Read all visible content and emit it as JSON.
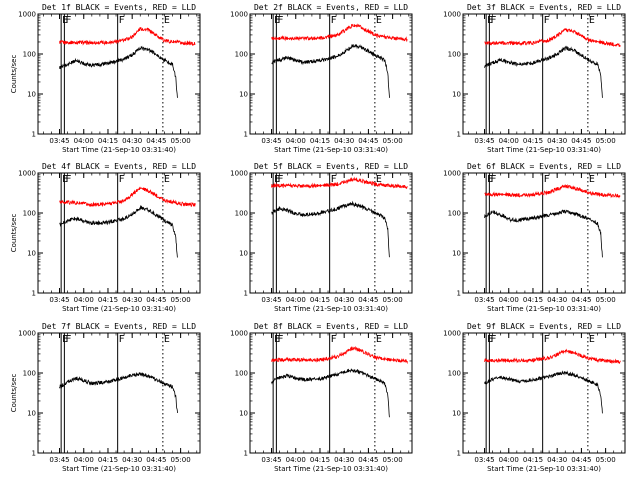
{
  "figure": {
    "background": "#ffffff"
  },
  "chart_data": [
    {
      "type": "line",
      "title": "Det 1f BLACK = Events, RED = LLD",
      "xlabel": "Start Time (21-Sep-10 03:31:40)",
      "ylabel": "Counts/sec",
      "yscale": "log",
      "ylim": [
        1,
        1000
      ],
      "xlim": [
        "03:31:40",
        "05:12:00"
      ],
      "x_ticks": [
        "03:45",
        "04:00",
        "04:15",
        "04:30",
        "04:45",
        "05:00"
      ],
      "y_ticks": [
        "1",
        "10",
        "100",
        "1000"
      ],
      "series": [
        {
          "color": "#ff0000",
          "x": [
            "03:45",
            "03:55",
            "04:05",
            "04:15",
            "04:25",
            "04:30",
            "04:35",
            "04:40",
            "04:50",
            "05:00",
            "05:05",
            "05:09"
          ],
          "values": [
            195,
            195,
            190,
            195,
            220,
            270,
            430,
            400,
            215,
            190,
            185,
            180
          ]
        },
        {
          "color": "#000000",
          "x": [
            "03:45",
            "03:50",
            "03:55",
            "04:00",
            "04:05",
            "04:15",
            "04:25",
            "04:30",
            "04:35",
            "04:40",
            "04:50",
            "04:55",
            "04:57",
            "04:58"
          ],
          "values": [
            45,
            55,
            68,
            58,
            52,
            58,
            75,
            95,
            140,
            130,
            70,
            55,
            25,
            8
          ]
        }
      ],
      "vlines": [
        {
          "x": "03:46",
          "style": "solid",
          "label": "E"
        },
        {
          "x": "03:48",
          "style": "solid",
          "label": "F"
        },
        {
          "x": "04:21",
          "style": "solid",
          "label": "F"
        },
        {
          "x": "04:49",
          "style": "dotted",
          "label": "E"
        }
      ],
      "grid": false,
      "legend": "none"
    },
    {
      "type": "line",
      "title": "Det 2f BLACK = Events, RED = LLD",
      "xlabel": "Start Time (21-Sep-10 03:31:40)",
      "ylabel": "",
      "yscale": "log",
      "ylim": [
        1,
        1000
      ],
      "xlim": [
        "03:31:40",
        "05:12:00"
      ],
      "x_ticks": [
        "03:45",
        "04:00",
        "04:15",
        "04:30",
        "04:45",
        "05:00"
      ],
      "y_ticks": [
        "1",
        "10",
        "100",
        "1000"
      ],
      "series": [
        {
          "color": "#ff0000",
          "x": [
            "03:45",
            "03:55",
            "04:05",
            "04:15",
            "04:25",
            "04:30",
            "04:35",
            "04:40",
            "04:50",
            "05:00",
            "05:05",
            "05:09"
          ],
          "values": [
            245,
            250,
            245,
            250,
            290,
            380,
            520,
            470,
            290,
            250,
            240,
            230
          ]
        },
        {
          "color": "#000000",
          "x": [
            "03:45",
            "03:50",
            "03:55",
            "04:00",
            "04:05",
            "04:15",
            "04:25",
            "04:30",
            "04:35",
            "04:40",
            "04:50",
            "04:55",
            "04:57",
            "04:58"
          ],
          "values": [
            62,
            72,
            80,
            70,
            62,
            68,
            85,
            110,
            160,
            150,
            90,
            70,
            35,
            8
          ]
        }
      ],
      "vlines": [
        {
          "x": "03:46",
          "style": "solid",
          "label": "E"
        },
        {
          "x": "03:48",
          "style": "solid",
          "label": "F"
        },
        {
          "x": "04:21",
          "style": "solid",
          "label": "F"
        },
        {
          "x": "04:49",
          "style": "dotted",
          "label": "E"
        }
      ],
      "grid": false,
      "legend": "none"
    },
    {
      "type": "line",
      "title": "Det 3f BLACK = Events, RED = LLD",
      "xlabel": "Start Time (21-Sep-10 03:31:40)",
      "ylabel": "",
      "yscale": "log",
      "ylim": [
        1,
        1000
      ],
      "xlim": [
        "03:31:40",
        "05:12:00"
      ],
      "x_ticks": [
        "03:45",
        "04:00",
        "04:15",
        "04:30",
        "04:45",
        "05:00"
      ],
      "y_ticks": [
        "1",
        "10",
        "100",
        "1000"
      ],
      "series": [
        {
          "color": "#ff0000",
          "x": [
            "03:45",
            "03:55",
            "04:05",
            "04:15",
            "04:25",
            "04:30",
            "04:35",
            "04:40",
            "04:50",
            "05:00",
            "05:05",
            "05:09"
          ],
          "values": [
            185,
            190,
            185,
            190,
            220,
            290,
            410,
            370,
            220,
            185,
            175,
            165
          ]
        },
        {
          "color": "#000000",
          "x": [
            "03:45",
            "03:50",
            "03:55",
            "04:00",
            "04:05",
            "04:15",
            "04:25",
            "04:30",
            "04:35",
            "04:40",
            "04:50",
            "04:55",
            "04:57",
            "04:58"
          ],
          "values": [
            50,
            60,
            70,
            62,
            55,
            60,
            78,
            100,
            140,
            125,
            70,
            55,
            30,
            8
          ]
        }
      ],
      "vlines": [
        {
          "x": "03:46",
          "style": "solid",
          "label": "E"
        },
        {
          "x": "03:48",
          "style": "solid",
          "label": "F"
        },
        {
          "x": "04:21",
          "style": "solid",
          "label": "F"
        },
        {
          "x": "04:49",
          "style": "dotted",
          "label": "E"
        }
      ],
      "grid": false,
      "legend": "none"
    },
    {
      "type": "line",
      "title": "Det 4f BLACK = Events, RED = LLD",
      "xlabel": "Start Time (21-Sep-10 03:31:40)",
      "ylabel": "Counts/sec",
      "yscale": "log",
      "ylim": [
        1,
        1000
      ],
      "xlim": [
        "03:31:40",
        "05:12:00"
      ],
      "x_ticks": [
        "03:45",
        "04:00",
        "04:15",
        "04:30",
        "04:45",
        "05:00"
      ],
      "y_ticks": [
        "1",
        "10",
        "100",
        "1000"
      ],
      "series": [
        {
          "color": "#ff0000",
          "x": [
            "03:45",
            "03:55",
            "04:05",
            "04:15",
            "04:25",
            "04:30",
            "04:35",
            "04:40",
            "04:50",
            "05:00",
            "05:05",
            "05:09"
          ],
          "values": [
            190,
            180,
            160,
            170,
            200,
            290,
            420,
            360,
            210,
            170,
            165,
            160
          ]
        },
        {
          "color": "#000000",
          "x": [
            "03:45",
            "03:50",
            "03:55",
            "04:00",
            "04:05",
            "04:15",
            "04:25",
            "04:30",
            "04:35",
            "04:40",
            "04:50",
            "04:55",
            "04:57",
            "04:58"
          ],
          "values": [
            50,
            65,
            75,
            62,
            55,
            58,
            72,
            95,
            135,
            120,
            65,
            50,
            25,
            8
          ]
        }
      ],
      "vlines": [
        {
          "x": "03:46",
          "style": "solid",
          "label": "E"
        },
        {
          "x": "03:48",
          "style": "solid",
          "label": "F"
        },
        {
          "x": "04:21",
          "style": "solid",
          "label": "F"
        },
        {
          "x": "04:49",
          "style": "dotted",
          "label": "E"
        }
      ],
      "grid": false,
      "legend": "none"
    },
    {
      "type": "line",
      "title": "Det 5f BLACK = Events, RED = LLD",
      "xlabel": "Start Time (21-Sep-10 03:31:40)",
      "ylabel": "",
      "yscale": "log",
      "ylim": [
        1,
        1000
      ],
      "xlim": [
        "03:31:40",
        "05:12:00"
      ],
      "x_ticks": [
        "03:45",
        "04:00",
        "04:15",
        "04:30",
        "04:45",
        "05:00"
      ],
      "y_ticks": [
        "1",
        "10",
        "100",
        "1000"
      ],
      "series": [
        {
          "color": "#ff0000",
          "x": [
            "03:45",
            "03:55",
            "04:05",
            "04:15",
            "04:25",
            "04:30",
            "04:35",
            "04:40",
            "04:50",
            "05:00",
            "05:05",
            "05:09"
          ],
          "values": [
            480,
            490,
            470,
            480,
            520,
            600,
            700,
            650,
            520,
            470,
            460,
            450
          ]
        },
        {
          "color": "#000000",
          "x": [
            "03:45",
            "03:50",
            "03:55",
            "04:00",
            "04:05",
            "04:15",
            "04:25",
            "04:30",
            "04:35",
            "04:40",
            "04:50",
            "04:55",
            "04:57",
            "04:58"
          ],
          "values": [
            100,
            130,
            115,
            95,
            90,
            100,
            125,
            150,
            170,
            150,
            100,
            75,
            40,
            8
          ]
        }
      ],
      "vlines": [
        {
          "x": "03:46",
          "style": "solid",
          "label": "E"
        },
        {
          "x": "03:48",
          "style": "solid",
          "label": "F"
        },
        {
          "x": "04:21",
          "style": "solid",
          "label": "F"
        },
        {
          "x": "04:49",
          "style": "dotted",
          "label": "E"
        }
      ],
      "grid": false,
      "legend": "none"
    },
    {
      "type": "line",
      "title": "Det 6f BLACK = Events, RED = LLD",
      "xlabel": "Start Time (21-Sep-10 03:31:40)",
      "ylabel": "",
      "yscale": "log",
      "ylim": [
        1,
        1000
      ],
      "xlim": [
        "03:31:40",
        "05:12:00"
      ],
      "x_ticks": [
        "03:45",
        "04:00",
        "04:15",
        "04:30",
        "04:45",
        "05:00"
      ],
      "y_ticks": [
        "1",
        "10",
        "100",
        "1000"
      ],
      "series": [
        {
          "color": "#ff0000",
          "x": [
            "03:45",
            "03:55",
            "04:05",
            "04:15",
            "04:25",
            "04:30",
            "04:35",
            "04:40",
            "04:50",
            "05:00",
            "05:05",
            "05:09"
          ],
          "values": [
            290,
            290,
            280,
            290,
            330,
            400,
            470,
            420,
            320,
            280,
            275,
            270
          ]
        },
        {
          "color": "#000000",
          "x": [
            "03:45",
            "03:50",
            "03:55",
            "04:00",
            "04:05",
            "04:15",
            "04:25",
            "04:30",
            "04:35",
            "04:40",
            "04:50",
            "04:55",
            "04:57",
            "04:58"
          ],
          "values": [
            80,
            110,
            90,
            70,
            65,
            75,
            90,
            100,
            110,
            100,
            70,
            55,
            30,
            8
          ]
        }
      ],
      "vlines": [
        {
          "x": "03:46",
          "style": "solid",
          "label": "E"
        },
        {
          "x": "03:48",
          "style": "solid",
          "label": "F"
        },
        {
          "x": "04:21",
          "style": "solid",
          "label": "F"
        },
        {
          "x": "04:49",
          "style": "dotted",
          "label": "E"
        }
      ],
      "grid": false,
      "legend": "none"
    },
    {
      "type": "line",
      "title": "Det 7f BLACK = Events, RED = LLD",
      "xlabel": "Start Time (21-Sep-10 03:31:40)",
      "ylabel": "Counts/sec",
      "yscale": "log",
      "ylim": [
        1,
        1000
      ],
      "xlim": [
        "03:31:40",
        "05:12:00"
      ],
      "x_ticks": [
        "03:45",
        "04:00",
        "04:15",
        "04:30",
        "04:45",
        "05:00"
      ],
      "y_ticks": [
        "1",
        "10",
        "100",
        "1000"
      ],
      "series": [
        {
          "color": "#000000",
          "x": [
            "03:45",
            "03:50",
            "03:55",
            "04:00",
            "04:05",
            "04:15",
            "04:25",
            "04:30",
            "04:35",
            "04:40",
            "04:50",
            "04:55",
            "04:57",
            "04:58"
          ],
          "values": [
            45,
            60,
            75,
            65,
            55,
            60,
            75,
            90,
            95,
            85,
            55,
            45,
            25,
            10
          ]
        }
      ],
      "vlines": [
        {
          "x": "03:46",
          "style": "solid",
          "label": "E"
        },
        {
          "x": "03:48",
          "style": "solid",
          "label": "F"
        },
        {
          "x": "04:21",
          "style": "solid",
          "label": "F"
        },
        {
          "x": "04:49",
          "style": "dotted",
          "label": "E"
        }
      ],
      "grid": false,
      "legend": "none"
    },
    {
      "type": "line",
      "title": "Det 8f BLACK = Events, RED = LLD",
      "xlabel": "Start Time (21-Sep-10 03:31:40)",
      "ylabel": "",
      "yscale": "log",
      "ylim": [
        1,
        1000
      ],
      "xlim": [
        "03:31:40",
        "05:12:00"
      ],
      "x_ticks": [
        "03:45",
        "04:00",
        "04:15",
        "04:30",
        "04:45",
        "05:00"
      ],
      "y_ticks": [
        "1",
        "10",
        "100",
        "1000"
      ],
      "series": [
        {
          "color": "#ff0000",
          "x": [
            "03:45",
            "03:55",
            "04:05",
            "04:15",
            "04:25",
            "04:30",
            "04:35",
            "04:40",
            "04:50",
            "05:00",
            "05:05",
            "05:09"
          ],
          "values": [
            210,
            215,
            210,
            215,
            250,
            320,
            420,
            370,
            240,
            210,
            205,
            200
          ]
        },
        {
          "color": "#000000",
          "x": [
            "03:45",
            "03:50",
            "03:55",
            "04:00",
            "04:05",
            "04:15",
            "04:25",
            "04:30",
            "04:35",
            "04:40",
            "04:50",
            "04:55",
            "04:57",
            "04:58"
          ],
          "values": [
            60,
            80,
            85,
            75,
            68,
            72,
            90,
            110,
            120,
            105,
            70,
            55,
            30,
            8
          ]
        }
      ],
      "vlines": [
        {
          "x": "03:46",
          "style": "solid",
          "label": "E"
        },
        {
          "x": "03:48",
          "style": "solid",
          "label": "F"
        },
        {
          "x": "04:21",
          "style": "solid",
          "label": "F"
        },
        {
          "x": "04:49",
          "style": "dotted",
          "label": "E"
        }
      ],
      "grid": false,
      "legend": "none"
    },
    {
      "type": "line",
      "title": "Det 9f BLACK = Events, RED = LLD",
      "xlabel": "Start Time (21-Sep-10 03:31:40)",
      "ylabel": "",
      "yscale": "log",
      "ylim": [
        1,
        1000
      ],
      "xlim": [
        "03:31:40",
        "05:12:00"
      ],
      "x_ticks": [
        "03:45",
        "04:00",
        "04:15",
        "04:30",
        "04:45",
        "05:00"
      ],
      "y_ticks": [
        "1",
        "10",
        "100",
        "1000"
      ],
      "series": [
        {
          "color": "#ff0000",
          "x": [
            "03:45",
            "03:55",
            "04:05",
            "04:15",
            "04:25",
            "04:30",
            "04:35",
            "04:40",
            "04:50",
            "05:00",
            "05:05",
            "05:09"
          ],
          "values": [
            200,
            210,
            205,
            210,
            240,
            290,
            360,
            320,
            230,
            200,
            195,
            190
          ]
        },
        {
          "color": "#000000",
          "x": [
            "03:45",
            "03:50",
            "03:55",
            "04:00",
            "04:05",
            "04:15",
            "04:25",
            "04:30",
            "04:35",
            "04:40",
            "04:50",
            "04:55",
            "04:57",
            "04:58"
          ],
          "values": [
            55,
            70,
            80,
            70,
            62,
            68,
            82,
            95,
            100,
            90,
            62,
            50,
            28,
            10
          ]
        }
      ],
      "vlines": [
        {
          "x": "03:46",
          "style": "solid",
          "label": "E"
        },
        {
          "x": "03:48",
          "style": "solid",
          "label": "F"
        },
        {
          "x": "04:21",
          "style": "solid",
          "label": "F"
        },
        {
          "x": "04:49",
          "style": "dotted",
          "label": "E"
        }
      ],
      "grid": false,
      "legend": "none"
    }
  ]
}
